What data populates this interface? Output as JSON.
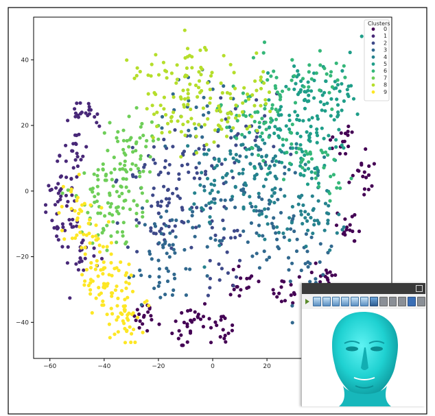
{
  "chart_data": {
    "type": "scatter",
    "title": "",
    "xlabel": "",
    "ylabel": "",
    "xlim": [
      -66,
      66
    ],
    "ylim": [
      -51,
      53
    ],
    "x_ticks": [
      -60,
      -40,
      -20,
      0,
      20
    ],
    "y_ticks": [
      -40,
      -20,
      0,
      20,
      40
    ],
    "x_tick_labels": [
      "−60",
      "−40",
      "−20",
      "0",
      "20"
    ],
    "y_tick_labels": [
      "−40",
      "−20",
      "0",
      "20",
      "40"
    ],
    "grid": false,
    "legend": {
      "title": "Clusters",
      "position": "top-right",
      "entries": [
        "0",
        "1",
        "2",
        "3",
        "4",
        "5",
        "6",
        "7",
        "8",
        "9"
      ]
    },
    "colors": [
      "#440154",
      "#482878",
      "#3e4989",
      "#31688e",
      "#26828e",
      "#1f9e89",
      "#35b779",
      "#6ece58",
      "#b5de2b",
      "#fde725"
    ],
    "series": [
      {
        "name": "0",
        "centers": [
          [
            48,
            15
          ],
          [
            55,
            4
          ],
          [
            50,
            -10
          ],
          [
            42,
            -26
          ],
          [
            28,
            -30
          ],
          [
            10,
            -28
          ],
          [
            -5,
            -38
          ],
          [
            -12,
            -44
          ],
          [
            -25,
            -38
          ],
          [
            3,
            -42
          ]
        ],
        "spread": [
          3,
          3
        ],
        "count": 160
      },
      {
        "name": "1",
        "centers": [
          [
            -46,
            24
          ],
          [
            -52,
            10
          ],
          [
            -57,
            0
          ],
          [
            -55,
            -10
          ],
          [
            -48,
            -20
          ]
        ],
        "spread": [
          3,
          3
        ],
        "count": 110
      },
      {
        "name": "2",
        "centers": [
          [
            -12,
            0
          ],
          [
            -20,
            -10
          ],
          [
            5,
            -20
          ],
          [
            -5,
            10
          ],
          [
            -25,
            5
          ],
          [
            12,
            18
          ]
        ],
        "spread": [
          6,
          6
        ],
        "count": 150
      },
      {
        "name": "3",
        "centers": [
          [
            -15,
            -15
          ],
          [
            5,
            -5
          ],
          [
            25,
            -15
          ],
          [
            35,
            -25
          ],
          [
            -20,
            -25
          ],
          [
            20,
            0
          ],
          [
            -5,
            25
          ]
        ],
        "spread": [
          6,
          6
        ],
        "count": 190
      },
      {
        "name": "4",
        "centers": [
          [
            20,
            10
          ],
          [
            35,
            0
          ],
          [
            40,
            -10
          ],
          [
            5,
            10
          ],
          [
            0,
            0
          ],
          [
            15,
            -5
          ]
        ],
        "spread": [
          6,
          6
        ],
        "count": 170
      },
      {
        "name": "5",
        "centers": [
          [
            30,
            30
          ],
          [
            40,
            22
          ],
          [
            25,
            18
          ],
          [
            45,
            30
          ],
          [
            35,
            10
          ]
        ],
        "spread": [
          6,
          5
        ],
        "count": 150
      },
      {
        "name": "6",
        "centers": [
          [
            20,
            25
          ],
          [
            30,
            12
          ],
          [
            40,
            5
          ],
          [
            10,
            22
          ],
          [
            25,
            35
          ],
          [
            42,
            34
          ]
        ],
        "spread": [
          5,
          5
        ],
        "count": 120
      },
      {
        "name": "7",
        "centers": [
          [
            -35,
            10
          ],
          [
            -25,
            15
          ],
          [
            -42,
            0
          ],
          [
            -30,
            0
          ],
          [
            -38,
            -10
          ]
        ],
        "spread": [
          5,
          5
        ],
        "count": 140
      },
      {
        "name": "8",
        "centers": [
          [
            -5,
            40
          ],
          [
            -10,
            30
          ],
          [
            -15,
            22
          ],
          [
            8,
            27
          ],
          [
            -20,
            35
          ],
          [
            0,
            20
          ],
          [
            15,
            30
          ]
        ],
        "spread": [
          5,
          5
        ],
        "count": 150
      },
      {
        "name": "9",
        "centers": [
          [
            -38,
            -25
          ],
          [
            -35,
            -35
          ],
          [
            -45,
            -15
          ],
          [
            -50,
            -5
          ],
          [
            -30,
            -40
          ],
          [
            -42,
            -30
          ]
        ],
        "spread": [
          4,
          4
        ],
        "count": 150
      }
    ]
  },
  "viewer": {
    "title": "",
    "toolbar_icons": [
      "arrow-icon",
      "tri-icon",
      "tri-icon",
      "tri-icon",
      "tri-icon",
      "tri-icon",
      "tri-icon",
      "cube-icon",
      "gray-icon",
      "gray-icon",
      "gray-icon",
      "blue-icon",
      "gray-icon"
    ]
  }
}
